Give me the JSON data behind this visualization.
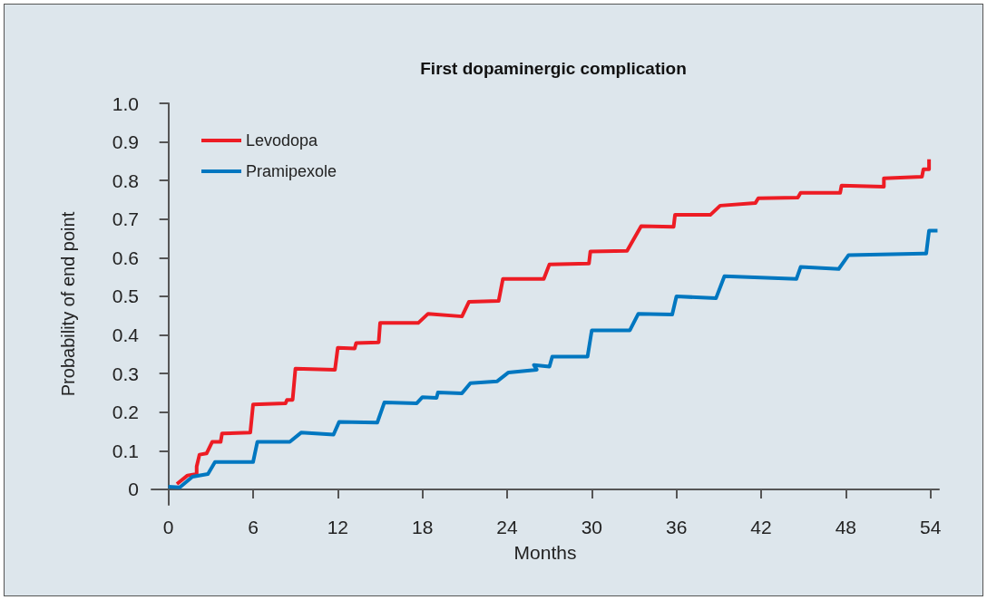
{
  "chart_data": {
    "type": "line",
    "title": "First dopaminergic complication",
    "xlabel": "Months",
    "ylabel": "Probability of end point",
    "xlim": [
      -1.2,
      54.6
    ],
    "xticks": [
      0,
      6,
      12,
      18,
      24,
      30,
      36,
      42,
      48,
      54
    ],
    "ylim": [
      -0.04,
      1.0
    ],
    "yticks": [
      0,
      0.1,
      0.2,
      0.3,
      0.4,
      0.5,
      0.6,
      0.7,
      0.8,
      0.9,
      {
        "value": 1,
        "label": "1.0"
      }
    ],
    "grid": false,
    "legend": "top left",
    "marker": "none",
    "line_style": "solid",
    "series": [
      {
        "name": "Levodopa",
        "color": "#ed1c24",
        "x": [
          0.6,
          1.35,
          2.0,
          2.0,
          2.2,
          2.7,
          3.1,
          3.7,
          3.8,
          5.8,
          6.0,
          8.3,
          8.4,
          8.8,
          9.0,
          11.8,
          12.0,
          13.2,
          13.3,
          14.9,
          15.0,
          17.7,
          18.4,
          20.8,
          21.3,
          23.4,
          23.7,
          26.6,
          27.0,
          29.8,
          29.9,
          32.5,
          33.5,
          35.8,
          35.9,
          38.4,
          39.1,
          41.6,
          41.8,
          44.6,
          44.8,
          47.6,
          47.7,
          50.7,
          50.7,
          53.4,
          53.5,
          53.9,
          53.9
        ],
        "values": [
          0.014,
          0.036,
          0.04,
          0.059,
          0.09,
          0.093,
          0.123,
          0.123,
          0.145,
          0.147,
          0.22,
          0.223,
          0.232,
          0.232,
          0.313,
          0.31,
          0.367,
          0.365,
          0.379,
          0.381,
          0.431,
          0.431,
          0.455,
          0.448,
          0.486,
          0.488,
          0.545,
          0.545,
          0.583,
          0.585,
          0.616,
          0.618,
          0.682,
          0.68,
          0.711,
          0.711,
          0.735,
          0.742,
          0.754,
          0.756,
          0.768,
          0.768,
          0.787,
          0.784,
          0.806,
          0.81,
          0.829,
          0.829,
          0.855
        ]
      },
      {
        "name": "Pramipexole",
        "color": "#0077c0",
        "x": [
          0,
          0.8,
          1.7,
          2.8,
          3.3,
          6.0,
          6.3,
          8.6,
          9.4,
          11.7,
          12.1,
          14.8,
          15.3,
          17.6,
          18.0,
          19.0,
          19.1,
          20.8,
          21.4,
          23.3,
          24.1,
          26.1,
          25.9,
          27.0,
          27.2,
          29.7,
          30.0,
          32.7,
          33.3,
          35.7,
          36.0,
          38.8,
          39.4,
          44.5,
          44.8,
          47.5,
          48.2,
          53.7,
          53.9,
          54.5
        ],
        "values": [
          0.007,
          0.005,
          0.033,
          0.04,
          0.071,
          0.071,
          0.123,
          0.123,
          0.147,
          0.142,
          0.175,
          0.173,
          0.225,
          0.223,
          0.239,
          0.237,
          0.251,
          0.249,
          0.275,
          0.28,
          0.303,
          0.31,
          0.322,
          0.318,
          0.344,
          0.344,
          0.412,
          0.412,
          0.455,
          0.453,
          0.5,
          0.495,
          0.552,
          0.545,
          0.576,
          0.571,
          0.607,
          0.611,
          0.67,
          0.67
        ]
      }
    ]
  }
}
